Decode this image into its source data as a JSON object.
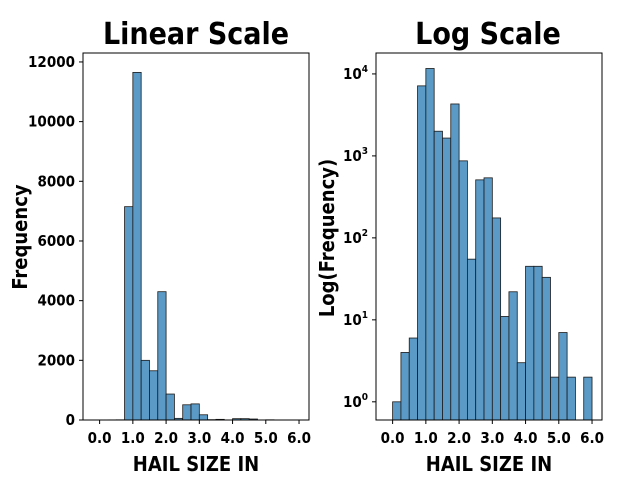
{
  "chart_data": [
    {
      "type": "bar",
      "title": "Linear Scale",
      "xlabel": "HAIL SIZE IN",
      "ylabel": "Frequency",
      "yscale": "linear",
      "xlim": [
        -0.5,
        6.3
      ],
      "ylim": [
        0,
        12300
      ],
      "xticks": [
        0,
        1,
        2,
        3,
        4,
        5,
        6
      ],
      "xtick_labels": [
        "0.0",
        "1.0",
        "2.0",
        "3.0",
        "4.0",
        "5.0",
        "6.0"
      ],
      "yticks": [
        0,
        2000,
        4000,
        6000,
        8000,
        10000,
        12000
      ],
      "ytick_labels": [
        "0",
        "2000",
        "4000",
        "6000",
        "8000",
        "10000",
        "12000"
      ],
      "bin_width": 0.25,
      "bins": [
        0.0,
        0.25,
        0.5,
        0.75,
        1.0,
        1.25,
        1.5,
        1.75,
        2.0,
        2.25,
        2.5,
        2.75,
        3.0,
        3.25,
        3.5,
        3.75,
        4.0,
        4.25,
        4.5,
        4.75,
        5.0,
        5.25,
        5.5,
        5.75
      ],
      "values": [
        1,
        4,
        6,
        7150,
        11650,
        2000,
        1650,
        4300,
        870,
        55,
        510,
        540,
        175,
        11,
        22,
        3,
        45,
        45,
        33,
        2,
        7,
        2,
        0,
        2
      ],
      "grid": false,
      "legend": "none"
    },
    {
      "type": "bar",
      "title": "Log Scale",
      "xlabel": "HAIL SIZE IN",
      "ylabel": "Log(Frequency)",
      "yscale": "log",
      "xlim": [
        -0.5,
        6.3
      ],
      "ylim": [
        0.6,
        18000
      ],
      "xticks": [
        0,
        1,
        2,
        3,
        4,
        5,
        6
      ],
      "xtick_labels": [
        "0.0",
        "1.0",
        "2.0",
        "3.0",
        "4.0",
        "5.0",
        "6.0"
      ],
      "yticks": [
        1,
        10,
        100,
        1000,
        10000
      ],
      "ytick_base": "10",
      "ytick_exponents": [
        "0",
        "1",
        "2",
        "3",
        "4"
      ],
      "bin_width": 0.25,
      "bins": [
        0.0,
        0.25,
        0.5,
        0.75,
        1.0,
        1.25,
        1.5,
        1.75,
        2.0,
        2.25,
        2.5,
        2.75,
        3.0,
        3.25,
        3.5,
        3.75,
        4.0,
        4.25,
        4.5,
        4.75,
        5.0,
        5.25,
        5.5,
        5.75
      ],
      "values": [
        1,
        4,
        6,
        7150,
        11650,
        2000,
        1650,
        4300,
        870,
        55,
        510,
        540,
        175,
        11,
        22,
        3,
        45,
        45,
        33,
        2,
        7,
        2,
        0,
        2
      ],
      "grid": false,
      "legend": "none"
    }
  ],
  "colors": {
    "bar_fill": "#5b9ac6",
    "bar_edge": "#1a1a1a",
    "spine": "#000000"
  }
}
